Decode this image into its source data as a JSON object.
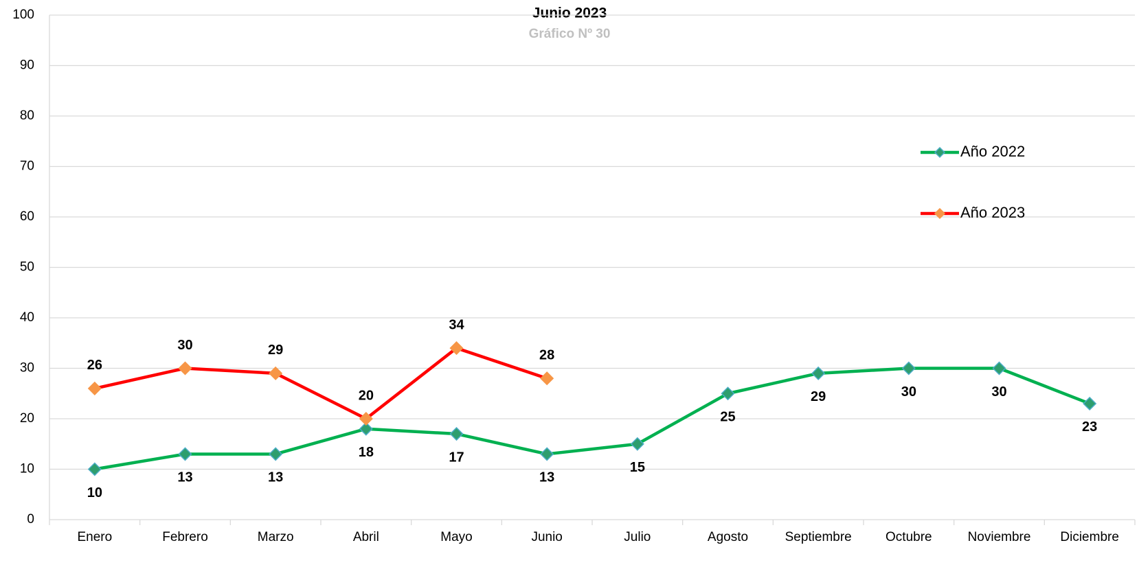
{
  "chart_data": {
    "type": "line",
    "title": "Junio 2023",
    "subtitle": "Gráfico Nº 30",
    "categories": [
      "Enero",
      "Febrero",
      "Marzo",
      "Abril",
      "Mayo",
      "Junio",
      "Julio",
      "Agosto",
      "Septiembre",
      "Octubre",
      "Noviembre",
      "Diciembre"
    ],
    "series": [
      {
        "name": "Año 2022",
        "color": "#00b050",
        "marker_color": "#2e9e6e",
        "values": [
          10,
          13,
          13,
          18,
          17,
          13,
          15,
          25,
          29,
          30,
          30,
          23
        ]
      },
      {
        "name": "Año 2023",
        "color": "#ff0000",
        "marker_color": "#f79646",
        "values": [
          26,
          30,
          29,
          20,
          34,
          28,
          null,
          null,
          null,
          null,
          null,
          null
        ]
      }
    ],
    "ylim": [
      0,
      100
    ],
    "yticks": [
      0,
      10,
      20,
      30,
      40,
      50,
      60,
      70,
      80,
      90,
      100
    ],
    "grid": true,
    "legend": "right"
  }
}
